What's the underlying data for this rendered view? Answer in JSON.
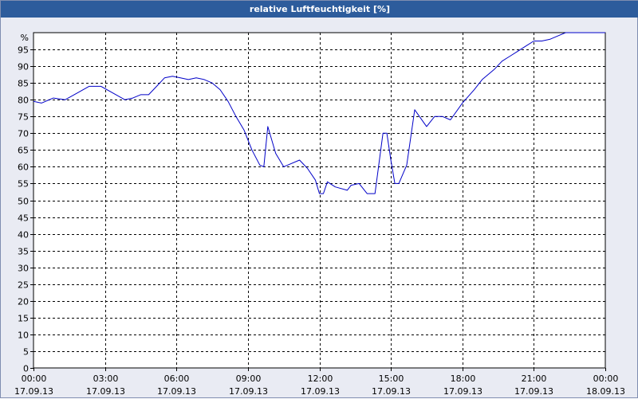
{
  "chart_data": {
    "type": "line",
    "title": "relative Luftfeuchtigkeit [%]",
    "y_unit_label": "%",
    "ylim": [
      0,
      100
    ],
    "y_ticks": [
      0,
      5,
      10,
      15,
      20,
      25,
      30,
      35,
      40,
      45,
      50,
      55,
      60,
      65,
      70,
      75,
      80,
      85,
      90,
      95
    ],
    "xlim": [
      "17.09.13 00:00",
      "18.09.13 00:00"
    ],
    "x_ticks": [
      {
        "time": "00:00",
        "date": "17.09.13"
      },
      {
        "time": "03:00",
        "date": "17.09.13"
      },
      {
        "time": "06:00",
        "date": "17.09.13"
      },
      {
        "time": "09:00",
        "date": "17.09.13"
      },
      {
        "time": "12:00",
        "date": "17.09.13"
      },
      {
        "time": "15:00",
        "date": "17.09.13"
      },
      {
        "time": "18:00",
        "date": "17.09.13"
      },
      {
        "time": "21:00",
        "date": "17.09.13"
      },
      {
        "time": "00:00",
        "date": "18.09.13"
      }
    ],
    "grid": true,
    "line_color": "#0000c8",
    "series": [
      {
        "x": [
          "17.09.13 00:00",
          "17.09.13 00:20",
          "17.09.13 00:50",
          "17.09.13 01:20",
          "17.09.13 01:50",
          "17.09.13 02:20",
          "17.09.13 02:50",
          "17.09.13 03:20",
          "17.09.13 03:50",
          "17.09.13 04:10",
          "17.09.13 04:30",
          "17.09.13 04:50",
          "17.09.13 05:10",
          "17.09.13 05:30",
          "17.09.13 05:50",
          "17.09.13 06:10",
          "17.09.13 06:30",
          "17.09.13 06:50",
          "17.09.13 07:10",
          "17.09.13 07:30",
          "17.09.13 07:50",
          "17.09.13 08:10",
          "17.09.13 08:30",
          "17.09.13 08:50",
          "17.09.13 09:10",
          "17.09.13 09:30",
          "17.09.13 09:40",
          "17.09.13 09:50",
          "17.09.13 10:10",
          "17.09.13 10:30",
          "17.09.13 10:40",
          "17.09.13 11:10",
          "17.09.13 11:30",
          "17.09.13 11:50",
          "17.09.13 12:00",
          "17.09.13 12:10",
          "17.09.13 12:20",
          "17.09.13 12:40",
          "17.09.13 13:10",
          "17.09.13 13:20",
          "17.09.13 13:40",
          "17.09.13 14:00",
          "17.09.13 14:20",
          "17.09.13 14:40",
          "17.09.13 14:50",
          "17.09.13 15:00",
          "17.09.13 15:10",
          "17.09.13 15:20",
          "17.09.13 15:40",
          "17.09.13 16:00",
          "17.09.13 16:30",
          "17.09.13 16:50",
          "17.09.13 17:10",
          "17.09.13 17:30",
          "17.09.13 18:00",
          "17.09.13 18:30",
          "17.09.13 18:50",
          "17.09.13 19:20",
          "17.09.13 19:40",
          "17.09.13 20:00",
          "17.09.13 20:20",
          "17.09.13 20:40",
          "17.09.13 21:00",
          "17.09.13 21:20",
          "17.09.13 21:40",
          "17.09.13 22:00",
          "17.09.13 22:20",
          "17.09.13 22:40",
          "17.09.13 23:00",
          "17.09.13 23:30",
          "18.09.13 00:00"
        ],
        "values": [
          79.5,
          79.0,
          80.5,
          80.0,
          82.0,
          84.0,
          84.0,
          82.0,
          80.0,
          80.5,
          81.5,
          81.5,
          84.0,
          86.5,
          87.0,
          86.5,
          86.0,
          86.5,
          86.0,
          85.0,
          83.0,
          79.5,
          75.0,
          71.0,
          65.0,
          60.5,
          60.0,
          72.0,
          64.0,
          60.0,
          60.5,
          62.0,
          59.5,
          56.0,
          52.0,
          52.0,
          55.5,
          54.0,
          53.0,
          54.5,
          55.0,
          52.0,
          52.0,
          70.0,
          70.0,
          62.0,
          55.0,
          55.0,
          60.5,
          77.0,
          72.0,
          75.0,
          75.0,
          74.0,
          79.0,
          83.0,
          86.0,
          89.0,
          91.5,
          93.0,
          94.5,
          96.0,
          97.5,
          97.5,
          98.0,
          99.0,
          100.0,
          100.0,
          100.0,
          100.0,
          100.0
        ]
      }
    ]
  }
}
